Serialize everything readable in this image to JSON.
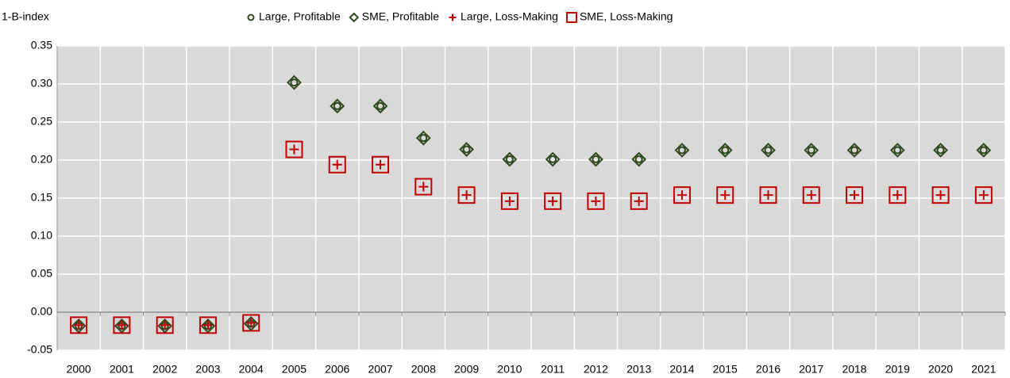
{
  "chart_data": {
    "type": "scatter",
    "y_label": "1-B-index",
    "categories": [
      "2000",
      "2001",
      "2002",
      "2003",
      "2004",
      "2005",
      "2006",
      "2007",
      "2008",
      "2009",
      "2010",
      "2011",
      "2012",
      "2013",
      "2014",
      "2015",
      "2016",
      "2017",
      "2018",
      "2019",
      "2020",
      "2021"
    ],
    "series": [
      {
        "name": "Large, Profitable",
        "color": "#2e4a1e",
        "marker": "circle",
        "values": [
          -0.018,
          -0.018,
          -0.018,
          -0.018,
          -0.015,
          0.302,
          0.271,
          0.271,
          0.229,
          0.214,
          0.201,
          0.201,
          0.201,
          0.201,
          0.213,
          0.213,
          0.213,
          0.213,
          0.213,
          0.213,
          0.213,
          0.213
        ]
      },
      {
        "name": "SME, Profitable",
        "color": "#2e4a1e",
        "marker": "diamond",
        "values": [
          -0.018,
          -0.018,
          -0.018,
          -0.018,
          -0.015,
          0.302,
          0.271,
          0.271,
          0.229,
          0.214,
          0.201,
          0.201,
          0.201,
          0.201,
          0.213,
          0.213,
          0.213,
          0.213,
          0.213,
          0.213,
          0.213,
          0.213
        ]
      },
      {
        "name": "Large, Loss-Making",
        "color": "#c00000",
        "marker": "plus",
        "values": [
          -0.017,
          -0.017,
          -0.017,
          -0.017,
          -0.014,
          0.214,
          0.194,
          0.194,
          0.165,
          0.154,
          0.146,
          0.146,
          0.146,
          0.146,
          0.154,
          0.154,
          0.154,
          0.154,
          0.154,
          0.154,
          0.154,
          0.154
        ]
      },
      {
        "name": "SME, Loss-Making",
        "color": "#c00000",
        "marker": "square",
        "values": [
          -0.017,
          -0.017,
          -0.017,
          -0.017,
          -0.014,
          0.214,
          0.194,
          0.194,
          0.165,
          0.154,
          0.146,
          0.146,
          0.146,
          0.146,
          0.154,
          0.154,
          0.154,
          0.154,
          0.154,
          0.154,
          0.154,
          0.154
        ]
      }
    ],
    "ylim": [
      -0.05,
      0.35
    ],
    "yticks": [
      {
        "value": -0.05,
        "label": "-0.05"
      },
      {
        "value": 0,
        "label": "0.00"
      },
      {
        "value": 0.05,
        "label": "0.05"
      },
      {
        "value": 0.1,
        "label": "0.10"
      },
      {
        "value": 0.15,
        "label": "0.15"
      },
      {
        "value": 0.2,
        "label": "0.20"
      },
      {
        "value": 0.25,
        "label": "0.25"
      },
      {
        "value": 0.3,
        "label": "0.30"
      },
      {
        "value": 0.35,
        "label": "0.35"
      }
    ],
    "grid": true,
    "background": "#d9d9d9",
    "legend": "top"
  }
}
